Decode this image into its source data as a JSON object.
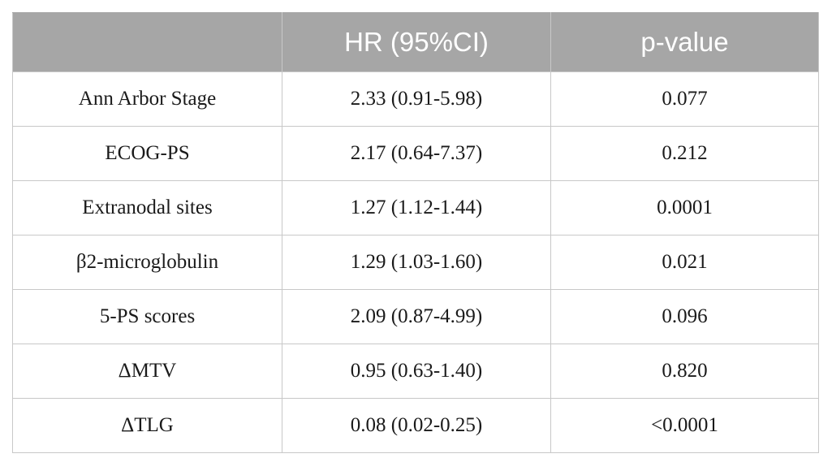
{
  "table": {
    "headers": [
      "",
      "HR (95%CI)",
      "p-value"
    ],
    "rows": [
      {
        "label": "Ann Arbor Stage",
        "hr": "2.33 (0.91-5.98)",
        "p": "0.077"
      },
      {
        "label": "ECOG-PS",
        "hr": "2.17 (0.64-7.37)",
        "p": "0.212"
      },
      {
        "label": "Extranodal sites",
        "hr": "1.27 (1.12-1.44)",
        "p": "0.0001"
      },
      {
        "label": "β2-microglobulin",
        "hr": "1.29 (1.03-1.60)",
        "p": "0.021"
      },
      {
        "label": "5-PS scores",
        "hr": "2.09 (0.87-4.99)",
        "p": "0.096"
      },
      {
        "label": "ΔMTV",
        "hr": "0.95 (0.63-1.40)",
        "p": "0.820"
      },
      {
        "label": "ΔTLG",
        "hr": "0.08 (0.02-0.25)",
        "p": "<0.0001"
      }
    ]
  },
  "colors": {
    "header_bg": "#a6a6a6",
    "header_text": "#ffffff",
    "border": "#c8c8c8"
  }
}
